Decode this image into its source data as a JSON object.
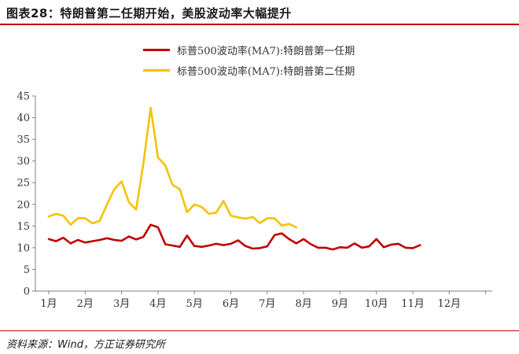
{
  "header": {
    "title": "图表28：特朗普第二任期开始，美股波动率大幅提升"
  },
  "footer": {
    "source": "资料来源：Wind，方正证券研究所"
  },
  "colors": {
    "series1": "#c00000",
    "series2": "#f5c200",
    "rule": "#c00000",
    "axis": "#7f7f7f"
  },
  "chart_data": {
    "type": "line",
    "xlabel": "",
    "ylabel": "",
    "ylim": [
      0,
      45
    ],
    "yticks": [
      0,
      5,
      10,
      15,
      20,
      25,
      30,
      35,
      40,
      45
    ],
    "xlim": [
      1,
      13
    ],
    "xticks": [
      1,
      2,
      3,
      4,
      5,
      6,
      7,
      8,
      9,
      10,
      11,
      12
    ],
    "xtick_labels": [
      "1月",
      "2月",
      "3月",
      "4月",
      "5月",
      "6月",
      "7月",
      "8月",
      "9月",
      "10月",
      "11月",
      "12月"
    ],
    "grid": false,
    "legend_position": "top-center",
    "series": [
      {
        "name": "标普500波动率(MA7):特朗普第一任期",
        "color_key": "series1",
        "points": [
          [
            1.0,
            12.0
          ],
          [
            1.2,
            11.5
          ],
          [
            1.4,
            12.3
          ],
          [
            1.6,
            11.0
          ],
          [
            1.8,
            11.8
          ],
          [
            2.0,
            11.2
          ],
          [
            2.2,
            11.5
          ],
          [
            2.4,
            11.8
          ],
          [
            2.6,
            12.2
          ],
          [
            2.8,
            11.8
          ],
          [
            3.0,
            11.6
          ],
          [
            3.2,
            12.6
          ],
          [
            3.4,
            11.9
          ],
          [
            3.6,
            12.5
          ],
          [
            3.8,
            15.3
          ],
          [
            4.0,
            14.7
          ],
          [
            4.2,
            10.8
          ],
          [
            4.4,
            10.5
          ],
          [
            4.6,
            10.2
          ],
          [
            4.8,
            12.8
          ],
          [
            5.0,
            10.4
          ],
          [
            5.2,
            10.2
          ],
          [
            5.4,
            10.5
          ],
          [
            5.6,
            10.9
          ],
          [
            5.8,
            10.6
          ],
          [
            6.0,
            10.9
          ],
          [
            6.2,
            11.7
          ],
          [
            6.4,
            10.4
          ],
          [
            6.6,
            9.8
          ],
          [
            6.8,
            9.9
          ],
          [
            7.0,
            10.3
          ],
          [
            7.2,
            12.9
          ],
          [
            7.4,
            13.3
          ],
          [
            7.6,
            12.0
          ],
          [
            7.8,
            11.0
          ],
          [
            8.0,
            12.0
          ],
          [
            8.2,
            10.8
          ],
          [
            8.4,
            10.0
          ],
          [
            8.6,
            10.0
          ],
          [
            8.8,
            9.6
          ],
          [
            9.0,
            10.1
          ],
          [
            9.2,
            10.0
          ],
          [
            9.4,
            11.0
          ],
          [
            9.6,
            10.0
          ],
          [
            9.8,
            10.3
          ],
          [
            10.0,
            12.0
          ],
          [
            10.2,
            10.1
          ],
          [
            10.4,
            10.7
          ],
          [
            10.6,
            10.9
          ],
          [
            10.8,
            10.0
          ],
          [
            11.0,
            9.9
          ],
          [
            11.2,
            10.6
          ]
        ]
      },
      {
        "name": "标普500波动率(MA7):特朗普第二任期",
        "color_key": "series2",
        "points": [
          [
            1.0,
            17.2
          ],
          [
            1.2,
            17.8
          ],
          [
            1.4,
            17.4
          ],
          [
            1.6,
            15.3
          ],
          [
            1.8,
            16.8
          ],
          [
            2.0,
            16.8
          ],
          [
            2.2,
            15.6
          ],
          [
            2.4,
            16.2
          ],
          [
            2.6,
            20.0
          ],
          [
            2.8,
            23.5
          ],
          [
            3.0,
            25.3
          ],
          [
            3.2,
            20.5
          ],
          [
            3.4,
            18.8
          ],
          [
            3.6,
            29.5
          ],
          [
            3.8,
            42.3
          ],
          [
            4.0,
            30.8
          ],
          [
            4.2,
            29.0
          ],
          [
            4.4,
            24.5
          ],
          [
            4.6,
            23.5
          ],
          [
            4.8,
            18.2
          ],
          [
            5.0,
            20.0
          ],
          [
            5.2,
            19.4
          ],
          [
            5.4,
            17.8
          ],
          [
            5.6,
            18.1
          ],
          [
            5.8,
            20.8
          ],
          [
            6.0,
            17.4
          ],
          [
            6.2,
            17.0
          ],
          [
            6.4,
            16.7
          ],
          [
            6.6,
            17.1
          ],
          [
            6.8,
            15.7
          ],
          [
            7.0,
            16.8
          ],
          [
            7.2,
            16.8
          ],
          [
            7.4,
            15.1
          ],
          [
            7.6,
            15.5
          ],
          [
            7.8,
            14.7
          ]
        ]
      }
    ]
  }
}
